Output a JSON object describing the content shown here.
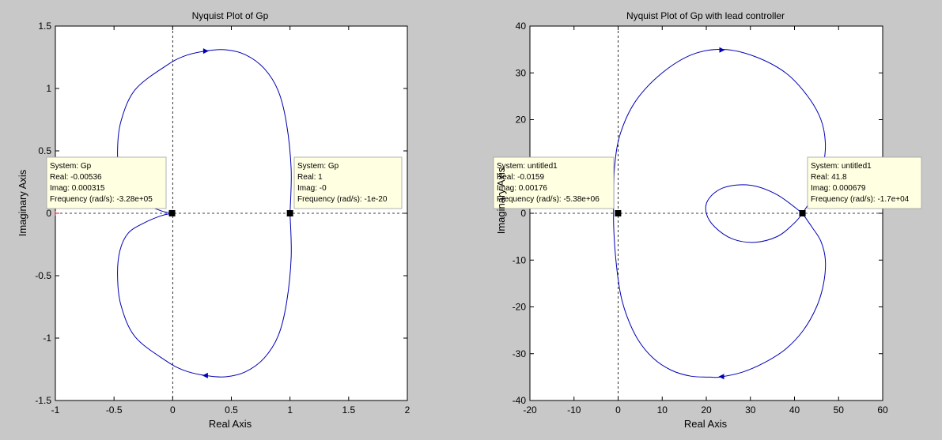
{
  "window": {
    "background": "#c8c8c8"
  },
  "chart_data": [
    {
      "type": "line",
      "title": "Nyquist Plot of Gp",
      "xlabel": "Real Axis",
      "ylabel": "Imaginary Axis",
      "xlim": [
        -1,
        2
      ],
      "ylim": [
        -1.5,
        1.5
      ],
      "xticks": [
        "-1",
        "-0.5",
        "0",
        "0.5",
        "1",
        "1.5",
        "2"
      ],
      "yticks": [
        "-1.5",
        "-1",
        "-0.5",
        "0",
        "0.5",
        "1",
        "1.5"
      ],
      "grid": false,
      "line_color": "#0000b4",
      "critical_point": [
        -1,
        0
      ],
      "series": [
        {
          "x": [
            1,
            1.01,
            0.97,
            0.9,
            0.78,
            0.62,
            0.45,
            0.28,
            0.1,
            -0.06,
            -0.32,
            -0.44,
            -0.47,
            -0.45,
            -0.38,
            -0.25,
            -0.1,
            -0.005
          ],
          "y": [
            0,
            0.35,
            0.72,
            0.98,
            1.16,
            1.27,
            1.31,
            1.3,
            1.26,
            1.18,
            0.99,
            0.74,
            0.5,
            0.3,
            0.16,
            0.08,
            0.02,
            0
          ]
        },
        {
          "x": [
            1,
            1.01,
            0.97,
            0.9,
            0.78,
            0.62,
            0.45,
            0.28,
            0.1,
            -0.06,
            -0.32,
            -0.44,
            -0.47,
            -0.45,
            -0.38,
            -0.25,
            -0.1,
            -0.005
          ],
          "y": [
            0,
            -0.35,
            -0.72,
            -0.98,
            -1.16,
            -1.27,
            -1.31,
            -1.3,
            -1.26,
            -1.18,
            -0.99,
            -0.74,
            -0.5,
            -0.3,
            -0.16,
            -0.08,
            -0.02,
            0
          ]
        }
      ],
      "direction_arrows": [
        {
          "x": 0.28,
          "y": 1.3,
          "dir": "right"
        },
        {
          "x": 0.28,
          "y": -1.3,
          "dir": "left"
        }
      ],
      "markers": [
        {
          "x": -0.00536,
          "y": 0.000315
        },
        {
          "x": 1,
          "y": 0
        }
      ],
      "datatips": [
        {
          "side": "left",
          "lines": [
            "System: Gp",
            "Real: -0.00536",
            "Imag: 0.000315",
            "Frequency (rad/s): -3.28e+05"
          ]
        },
        {
          "side": "right",
          "lines": [
            "System: Gp",
            "Real: 1",
            "Imag: -0",
            "Frequency (rad/s): -1e-20"
          ]
        }
      ]
    },
    {
      "type": "line",
      "title": "Nyquist Plot of Gp with lead controller",
      "xlabel": "Real Axis",
      "ylabel": "Imaginary Axis",
      "xlim": [
        -20,
        60
      ],
      "ylim": [
        -40,
        40
      ],
      "xticks": [
        "-20",
        "-10",
        "0",
        "10",
        "20",
        "30",
        "40",
        "50",
        "60"
      ],
      "yticks": [
        "-40",
        "-30",
        "-20",
        "-10",
        "0",
        "10",
        "20",
        "30",
        "40"
      ],
      "grid": false,
      "line_color": "#0000b4",
      "series": [
        {
          "x": [
            41.8,
            36,
            30,
            24,
            20.5,
            20,
            22,
            26,
            31,
            36,
            39.5,
            41.8,
            45,
            46.5,
            47,
            46,
            43,
            38,
            31,
            24,
            17,
            10,
            4,
            0.5,
            -0.8,
            -1,
            -1,
            -0.5,
            0.5,
            2,
            4.5,
            8,
            12,
            16.5,
            21,
            23,
            28,
            33,
            38,
            42,
            45,
            46.6,
            47,
            46,
            44,
            41.8
          ],
          "y": [
            0,
            4,
            6,
            5.5,
            3,
            0,
            -3,
            -5.5,
            -6.2,
            -5,
            -2.5,
            0,
            5,
            10,
            15,
            20,
            25,
            30,
            33.5,
            35,
            34,
            30,
            24,
            17,
            10,
            3,
            -3,
            -10,
            -17,
            -22,
            -27,
            -31,
            -33.5,
            -34.8,
            -35,
            -35,
            -34,
            -32,
            -29,
            -25,
            -20,
            -15,
            -10,
            -6,
            -3,
            0
          ]
        }
      ],
      "direction_arrows": [
        {
          "x": 23.5,
          "y": 34.9,
          "dir": "right"
        },
        {
          "x": 23.5,
          "y": -34.9,
          "dir": "left"
        }
      ],
      "markers": [
        {
          "x": -0.0159,
          "y": 0.00176
        },
        {
          "x": 41.8,
          "y": 0.000679
        }
      ],
      "datatips": [
        {
          "side": "left",
          "lines": [
            "System: untitled1",
            "Real: -0.0159",
            "Imag: 0.00176",
            "Frequency (rad/s): -5.38e+06"
          ]
        },
        {
          "side": "right",
          "lines": [
            "System: untitled1",
            "Real: 41.8",
            "Imag: 0.000679",
            "Frequency (rad/s): -1.7e+04"
          ]
        }
      ]
    }
  ]
}
